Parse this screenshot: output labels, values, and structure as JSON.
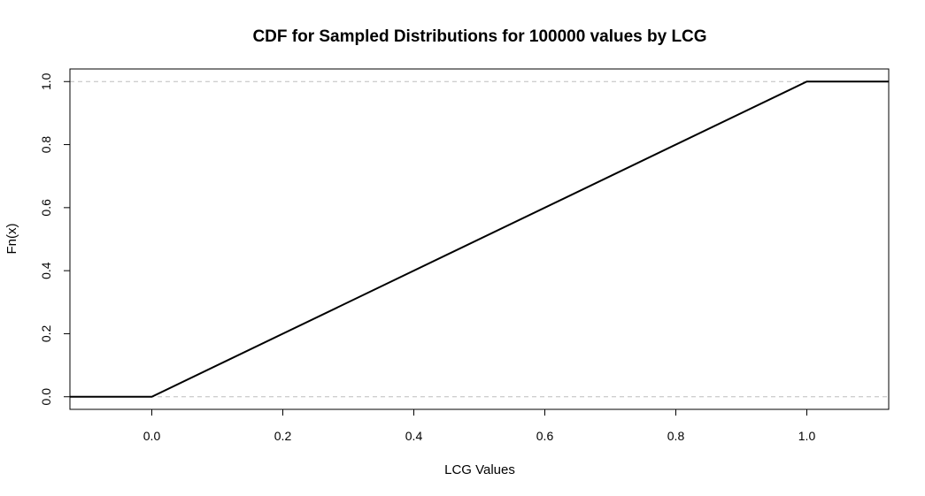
{
  "chart_data": {
    "type": "line",
    "title": "CDF for Sampled Distributions for 100000 values by LCG",
    "xlabel": "LCG Values",
    "ylabel": "Fn(x)",
    "xlim": [
      -0.125,
      1.125
    ],
    "ylim": [
      -0.04,
      1.04
    ],
    "x_ticks": [
      "0.0",
      "0.2",
      "0.4",
      "0.6",
      "0.8",
      "1.0"
    ],
    "y_ticks": [
      "0.0",
      "0.2",
      "0.4",
      "0.6",
      "0.8",
      "1.0"
    ],
    "reference_lines": [
      0,
      1
    ],
    "grid": false,
    "series": [
      {
        "x": [
          -0.125,
          0.0,
          1.0,
          1.125
        ],
        "y": [
          0.0,
          0.0,
          1.0,
          1.0
        ]
      }
    ],
    "colors": {
      "line": "#000000",
      "reference": "#bdbdbd",
      "frame": "#000000"
    }
  }
}
